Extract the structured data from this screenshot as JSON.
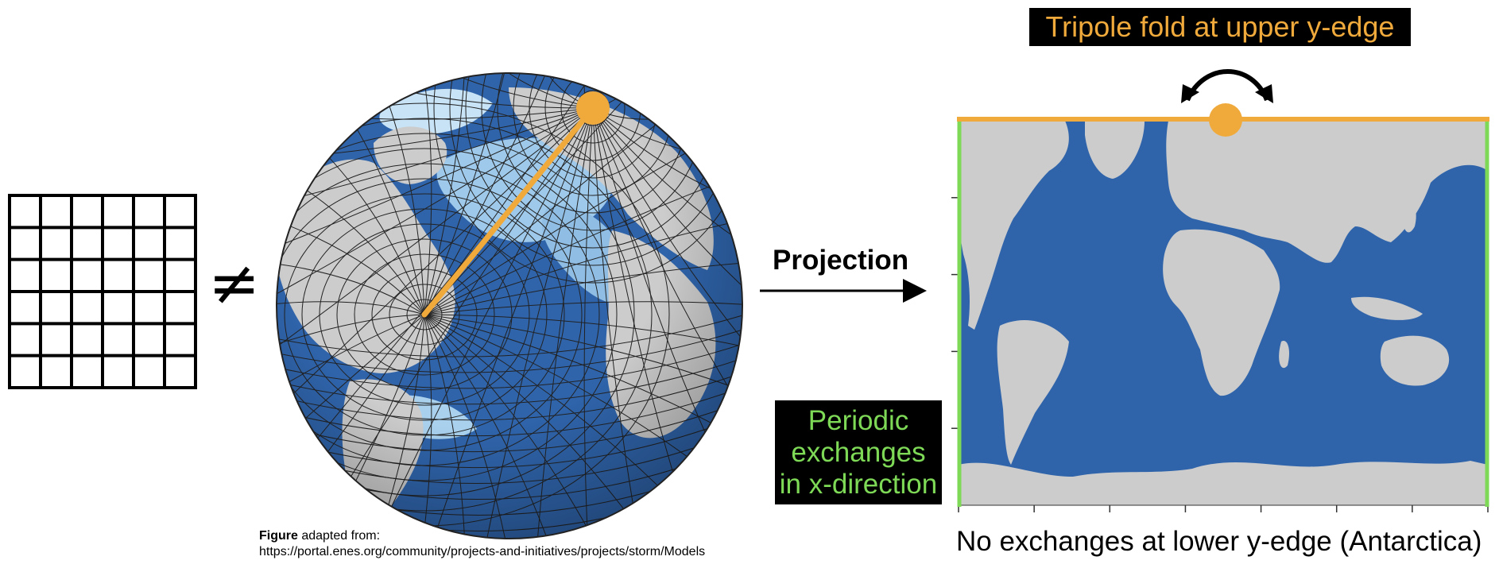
{
  "tripole_label": "Tripole fold at upper y-edge",
  "periodic_label": [
    "Periodic",
    "exchanges",
    "in x-direction"
  ],
  "projection_label": "Projection",
  "not_equal_symbol": "≠",
  "no_exchange_label": "No exchanges at lower y-edge (Antarctica)",
  "caption": {
    "bold": "Figure",
    "rest": " adapted from:",
    "url": "https://portal.enes.org/community/projects-and-initiatives/projects/storm/Models"
  },
  "grid": {
    "rows": 6,
    "cols": 6
  },
  "colors": {
    "tripole_orange": "#f0aa3c",
    "periodic_green": "#7ed957",
    "ocean_blue": "#2f64ab",
    "land_gray": "#cccccc"
  }
}
